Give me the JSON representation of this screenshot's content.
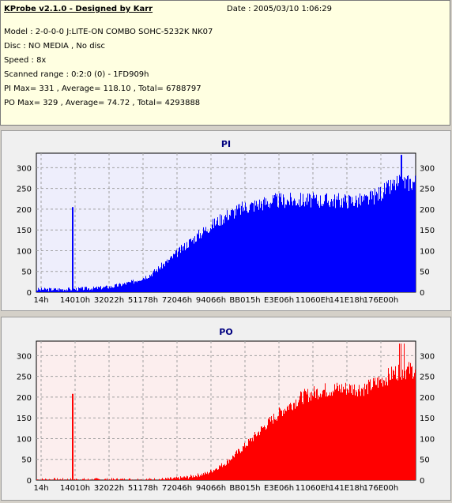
{
  "info": {
    "title": "KProbe v2.1.0 - Designed by Karr",
    "date": "Date : 2005/03/10 1:06:29",
    "lines": [
      "Model : 2-0-0-0 J:LITE-ON COMBO SOHC-5232K NK07",
      "Disc : NO MEDIA , No disc",
      "Speed : 8x",
      "Scanned range : 0:2:0 (0) - 1FD909h",
      "PI Max= 331 , Average= 118.10 , Total= 6788797",
      "PO Max= 329 , Average= 74.72 , Total= 4293888"
    ]
  },
  "chart_data": [
    {
      "type": "bar",
      "title": "PI",
      "color": "#0000ff",
      "background": "#eeeefc",
      "ylim": [
        0,
        335
      ],
      "yticks": [
        0,
        50,
        100,
        150,
        200,
        250,
        300
      ],
      "xticks": [
        "14h",
        "14010h",
        "32022h",
        "51178h",
        "72046h",
        "94066h",
        "BB015h",
        "E3E06h",
        "11060Eh",
        "141E18h",
        "176E00h"
      ],
      "profile": [
        [
          0,
          5
        ],
        [
          0.1,
          6
        ],
        [
          0.15,
          8
        ],
        [
          0.2,
          12
        ],
        [
          0.25,
          22
        ],
        [
          0.3,
          40
        ],
        [
          0.35,
          75
        ],
        [
          0.4,
          115
        ],
        [
          0.45,
          150
        ],
        [
          0.5,
          180
        ],
        [
          0.55,
          200
        ],
        [
          0.6,
          210
        ],
        [
          0.63,
          215
        ],
        [
          0.7,
          216
        ],
        [
          0.85,
          215
        ],
        [
          0.87,
          216
        ],
        [
          0.9,
          230
        ],
        [
          0.95,
          255
        ],
        [
          1.0,
          260
        ]
      ],
      "spike": {
        "x": 0.095,
        "y": 205
      },
      "max": 331
    },
    {
      "type": "bar",
      "title": "PO",
      "color": "#ff0000",
      "background": "#fceeee",
      "ylim": [
        0,
        335
      ],
      "yticks": [
        0,
        50,
        100,
        150,
        200,
        250,
        300
      ],
      "xticks": [
        "14h",
        "14010h",
        "32022h",
        "51178h",
        "72046h",
        "94066h",
        "BB015h",
        "E3E06h",
        "11060Eh",
        "141E18h",
        "176E00h"
      ],
      "profile": [
        [
          0,
          0
        ],
        [
          0.3,
          0
        ],
        [
          0.36,
          2
        ],
        [
          0.4,
          6
        ],
        [
          0.45,
          15
        ],
        [
          0.5,
          40
        ],
        [
          0.55,
          80
        ],
        [
          0.6,
          125
        ],
        [
          0.65,
          165
        ],
        [
          0.7,
          195
        ],
        [
          0.75,
          210
        ],
        [
          0.8,
          215
        ],
        [
          0.85,
          215
        ],
        [
          0.87,
          216
        ],
        [
          0.9,
          230
        ],
        [
          0.95,
          255
        ],
        [
          1.0,
          260
        ]
      ],
      "spike": {
        "x": 0.095,
        "y": 208
      },
      "max": 329
    }
  ]
}
